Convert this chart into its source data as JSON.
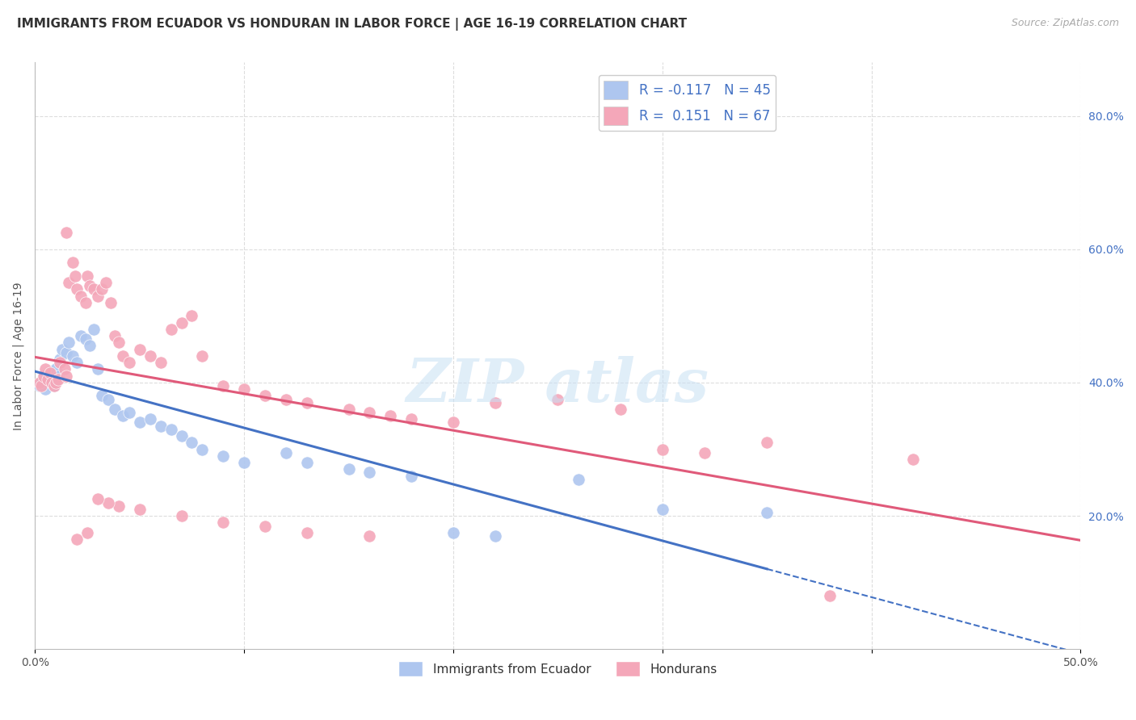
{
  "title": "IMMIGRANTS FROM ECUADOR VS HONDURAN IN LABOR FORCE | AGE 16-19 CORRELATION CHART",
  "source": "Source: ZipAtlas.com",
  "ylabel": "In Labor Force | Age 16-19",
  "xlim": [
    0.0,
    0.5
  ],
  "ylim": [
    0.0,
    0.88
  ],
  "xticks": [
    0.0,
    0.1,
    0.2,
    0.3,
    0.4,
    0.5
  ],
  "xtick_labels": [
    "0.0%",
    "",
    "",
    "",
    "",
    "50.0%"
  ],
  "ytick_positions_right": [
    0.2,
    0.4,
    0.6,
    0.8
  ],
  "background_color": "#ffffff",
  "grid_color": "#dddddd",
  "ecuador_color": "#aec6ef",
  "honduran_color": "#f4a7b9",
  "ecuador_line_color": "#4472c4",
  "honduran_line_color": "#e05a7a",
  "legend_R1": "-0.117",
  "legend_N1": "45",
  "legend_R2": "0.151",
  "legend_N2": "67",
  "title_fontsize": 11,
  "source_fontsize": 9,
  "ecuador_scatter_x": [
    0.002,
    0.003,
    0.004,
    0.005,
    0.006,
    0.007,
    0.008,
    0.009,
    0.01,
    0.011,
    0.012,
    0.013,
    0.015,
    0.016,
    0.018,
    0.02,
    0.022,
    0.024,
    0.026,
    0.028,
    0.03,
    0.032,
    0.035,
    0.038,
    0.042,
    0.045,
    0.05,
    0.055,
    0.06,
    0.065,
    0.07,
    0.075,
    0.08,
    0.09,
    0.1,
    0.12,
    0.13,
    0.15,
    0.16,
    0.18,
    0.2,
    0.22,
    0.26,
    0.3,
    0.35
  ],
  "ecuador_scatter_y": [
    0.395,
    0.4,
    0.41,
    0.39,
    0.405,
    0.415,
    0.4,
    0.395,
    0.42,
    0.41,
    0.435,
    0.45,
    0.445,
    0.46,
    0.44,
    0.43,
    0.47,
    0.465,
    0.455,
    0.48,
    0.42,
    0.38,
    0.375,
    0.36,
    0.35,
    0.355,
    0.34,
    0.345,
    0.335,
    0.33,
    0.32,
    0.31,
    0.3,
    0.29,
    0.28,
    0.295,
    0.28,
    0.27,
    0.265,
    0.26,
    0.175,
    0.17,
    0.255,
    0.21,
    0.205
  ],
  "honduran_scatter_x": [
    0.002,
    0.003,
    0.004,
    0.005,
    0.006,
    0.007,
    0.008,
    0.009,
    0.01,
    0.011,
    0.012,
    0.014,
    0.015,
    0.016,
    0.018,
    0.019,
    0.02,
    0.022,
    0.024,
    0.025,
    0.026,
    0.028,
    0.03,
    0.032,
    0.034,
    0.036,
    0.038,
    0.04,
    0.042,
    0.045,
    0.05,
    0.055,
    0.06,
    0.065,
    0.07,
    0.075,
    0.08,
    0.09,
    0.1,
    0.11,
    0.12,
    0.13,
    0.15,
    0.16,
    0.17,
    0.18,
    0.2,
    0.22,
    0.25,
    0.28,
    0.3,
    0.32,
    0.35,
    0.16,
    0.13,
    0.11,
    0.09,
    0.07,
    0.05,
    0.04,
    0.035,
    0.03,
    0.025,
    0.02,
    0.015,
    0.42,
    0.38
  ],
  "honduran_scatter_y": [
    0.4,
    0.395,
    0.41,
    0.42,
    0.405,
    0.415,
    0.4,
    0.395,
    0.4,
    0.405,
    0.43,
    0.42,
    0.41,
    0.55,
    0.58,
    0.56,
    0.54,
    0.53,
    0.52,
    0.56,
    0.545,
    0.54,
    0.53,
    0.54,
    0.55,
    0.52,
    0.47,
    0.46,
    0.44,
    0.43,
    0.45,
    0.44,
    0.43,
    0.48,
    0.49,
    0.5,
    0.44,
    0.395,
    0.39,
    0.38,
    0.375,
    0.37,
    0.36,
    0.355,
    0.35,
    0.345,
    0.34,
    0.37,
    0.375,
    0.36,
    0.3,
    0.295,
    0.31,
    0.17,
    0.175,
    0.185,
    0.19,
    0.2,
    0.21,
    0.215,
    0.22,
    0.225,
    0.175,
    0.165,
    0.625,
    0.285,
    0.08
  ]
}
